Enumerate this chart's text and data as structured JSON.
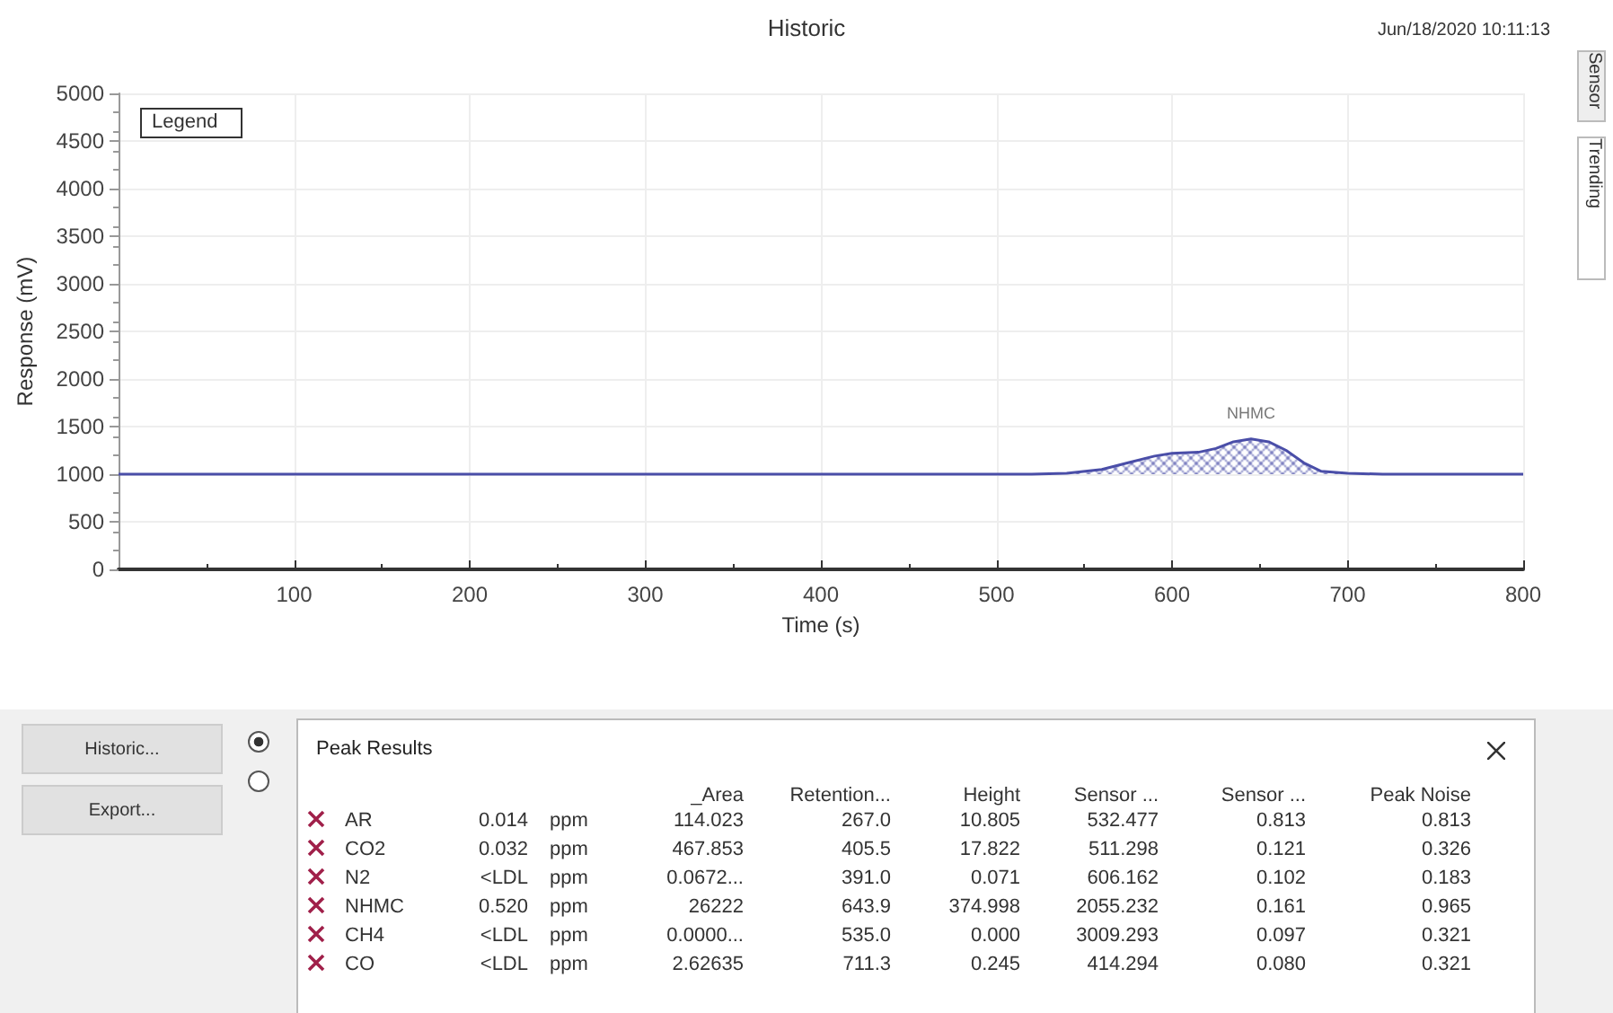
{
  "chart_data": [
    {
      "type": "area",
      "title": "Historic",
      "subtitle": "Jun/18/2020 10:11:13",
      "xlabel": "Time (s)",
      "ylabel": "Response (mV)",
      "xlim": [
        0,
        800
      ],
      "xticks": [
        100,
        200,
        300,
        400,
        500,
        600,
        700,
        800
      ],
      "ylim": [
        0,
        5000
      ],
      "yticks": [
        0,
        500,
        1000,
        1500,
        2000,
        2500,
        3000,
        3500,
        4000,
        4500,
        5000
      ],
      "grid": true,
      "marker": "none",
      "annotations": [
        "Legend",
        {
          "text": "NHMC",
          "x": 645,
          "y": 1370
        },
        "Sensor",
        "Trending"
      ],
      "series": [
        {
          "color": "#4a4ea8",
          "x": [
            0,
            100,
            200,
            300,
            400,
            470,
            520,
            540,
            560,
            575,
            590,
            600,
            615,
            625,
            635,
            645,
            655,
            665,
            675,
            685,
            700,
            720,
            760,
            800
          ],
          "values": [
            1000,
            1000,
            1000,
            1000,
            1000,
            1000,
            1000,
            1010,
            1050,
            1120,
            1190,
            1220,
            1230,
            1270,
            1340,
            1370,
            1340,
            1250,
            1120,
            1030,
            1010,
            1000,
            1000,
            1000
          ]
        }
      ]
    },
    {
      "type": "other",
      "title": "Peak Results",
      "categories": [
        null,
        null,
        null,
        "_Area",
        "Retention...",
        "Height",
        "Sensor ...",
        "Sensor ...",
        "Peak Noise"
      ],
      "y_categories": [
        "AR",
        "CO2",
        "N2",
        "NHMC",
        "CH4",
        "CO"
      ],
      "cell_labels": [
        [
          "0.014",
          "ppm",
          "114.023",
          "267.0",
          "10.805",
          "532.477",
          "0.813",
          "0.813"
        ],
        [
          "0.032",
          "ppm",
          "467.853",
          "405.5",
          "17.822",
          "511.298",
          "0.121",
          "0.326"
        ],
        [
          "<LDL",
          "ppm",
          "0.0672...",
          "391.0",
          "0.071",
          "606.162",
          "0.102",
          "0.183"
        ],
        [
          "0.520",
          "ppm",
          "26222",
          "643.9",
          "374.998",
          "2055.232",
          "0.161",
          "0.965"
        ],
        [
          "<LDL",
          "ppm",
          "0.0000...",
          "535.0",
          "0.000",
          "3009.293",
          "0.097",
          "0.321"
        ],
        [
          "<LDL",
          "ppm",
          "2.62635",
          "711.3",
          "0.245",
          "414.294",
          "0.080",
          "0.321"
        ]
      ],
      "annotations": [
        "Historic...",
        "Export..."
      ]
    }
  ]
}
